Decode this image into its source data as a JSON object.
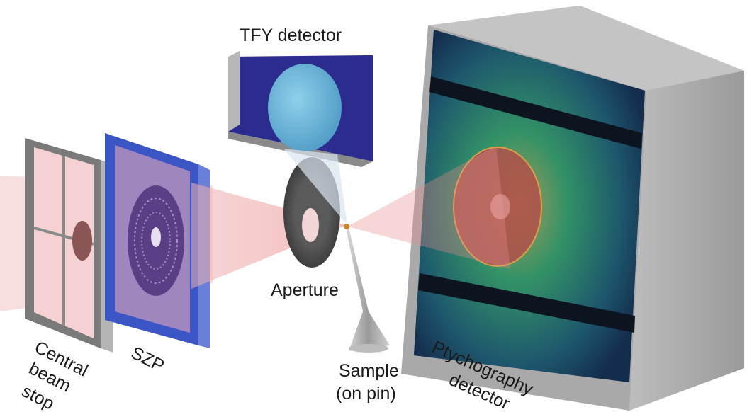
{
  "labels": {
    "tfy_detector": "TFY detector",
    "central_beam_stop": [
      "Central",
      "beam",
      "stop"
    ],
    "szp": "SZP",
    "aperture": "Aperture",
    "sample": [
      "Sample",
      "(on pin)"
    ],
    "ptychography_detector": [
      "Ptychography",
      "detector"
    ]
  },
  "colors": {
    "beam": "#e98a8a",
    "frame_gray": "#8c8c8c",
    "szp_frame": "#3b55c4",
    "tfy_face": "#2c2c8f",
    "tfy_circle": "#5fb2d6",
    "detector_face": "#173a58",
    "detector_glow": "#3aa86a",
    "detector_body": "#a9a9a9",
    "sample_dot": "#c9872a"
  }
}
